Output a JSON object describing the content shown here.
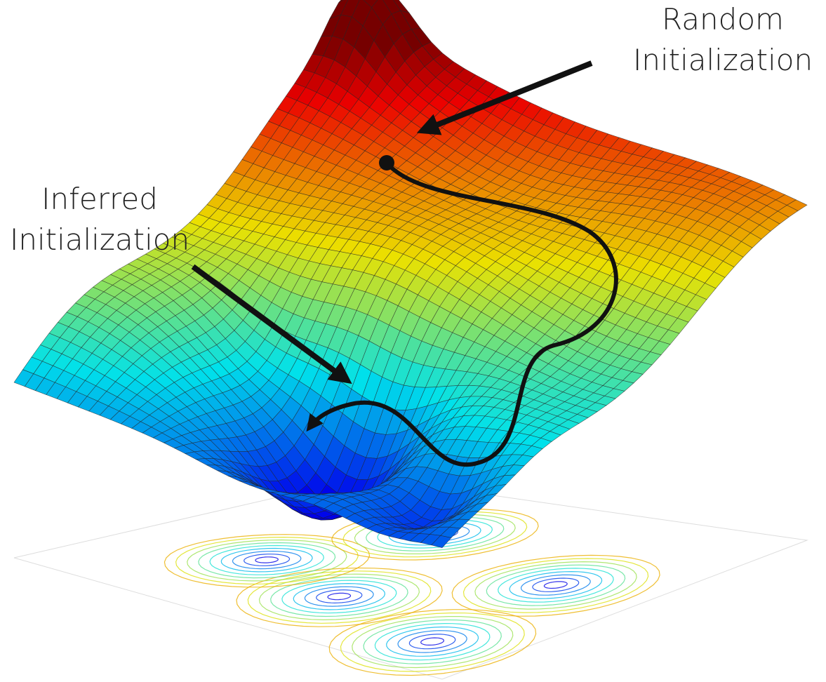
{
  "labels": [
    {
      "lines": [
        "Random",
        "Initialization"
      ]
    },
    {
      "lines": [
        "Inferred",
        "Initialization"
      ]
    }
  ]
}
